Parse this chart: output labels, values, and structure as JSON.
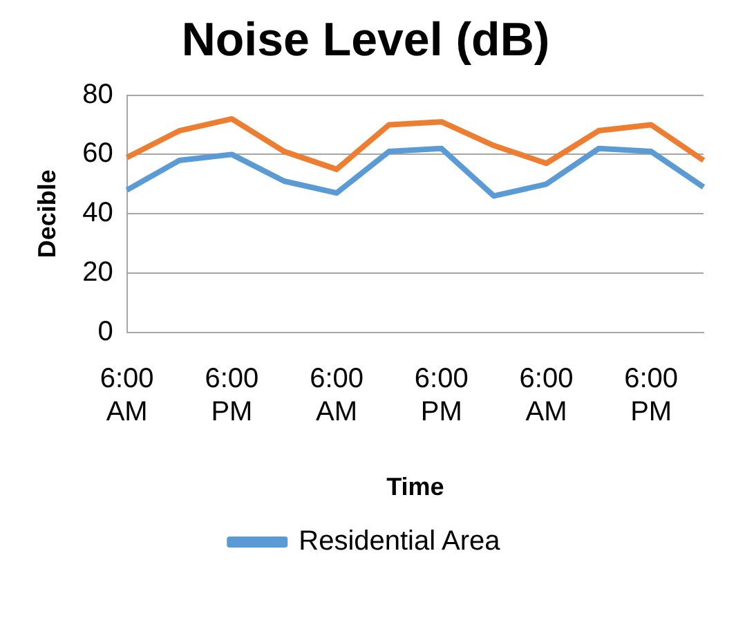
{
  "chart_data": {
    "type": "line",
    "title": "Noise Level (dB)",
    "xlabel": "Time",
    "ylabel": "Decible",
    "categories": [
      "6:00 AM",
      null,
      "6:00 PM",
      null,
      "6:00 AM",
      null,
      "6:00 PM",
      null,
      "6:00 AM",
      null,
      "6:00 PM",
      null
    ],
    "series": [
      {
        "name": "Residential Area",
        "color": "#5b9bd5",
        "values": [
          48,
          58,
          60,
          51,
          47,
          61,
          62,
          46,
          50,
          62,
          61,
          49
        ]
      },
      {
        "color": "#ed7d31",
        "values": [
          59,
          68,
          72,
          61,
          55,
          70,
          71,
          63,
          57,
          68,
          70,
          58
        ]
      }
    ],
    "ylim": [
      0,
      80
    ],
    "yticks": [
      0,
      20,
      40,
      60,
      80
    ],
    "grid": "y",
    "legend": "bottom",
    "marker": "none",
    "line_style": "solid"
  }
}
